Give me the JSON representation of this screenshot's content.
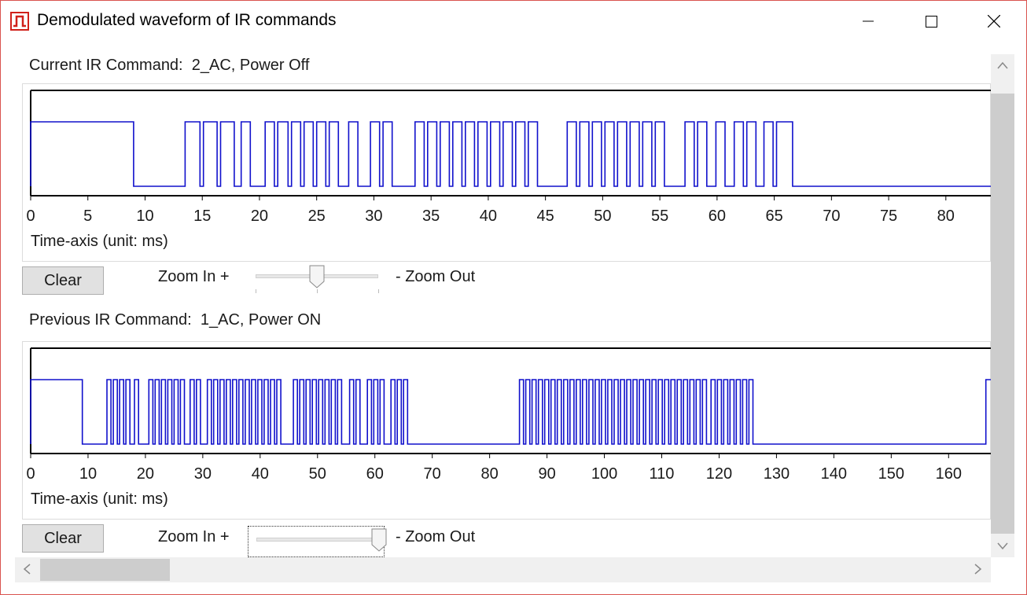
{
  "window": {
    "title": "Demodulated waveform of IR commands"
  },
  "current": {
    "label": "Current IR Command:  2_AC, Power Off",
    "axis_caption": "Time-axis (unit: ms)",
    "clear_label": "Clear",
    "zoom_in_label": "Zoom In +",
    "zoom_out_label": "- Zoom Out",
    "zoom_level": 0.5
  },
  "previous": {
    "label": "Previous IR Command:  1_AC, Power ON",
    "axis_caption": "Time-axis (unit: ms)",
    "clear_label": "Clear",
    "zoom_in_label": "Zoom In +",
    "zoom_out_label": "- Zoom Out",
    "zoom_level": 1.0
  },
  "colors": {
    "waveform": "#1010cc",
    "axis": "#000000",
    "app_icon": "#d0201a"
  },
  "chart_data": [
    {
      "type": "line",
      "step": true,
      "xlabel": "Time-axis (unit: ms)",
      "xlim": [
        0,
        84
      ],
      "x_ticks": [
        0,
        5,
        10,
        15,
        20,
        25,
        30,
        35,
        40,
        45,
        50,
        55,
        60,
        65,
        70,
        75,
        80
      ],
      "grid": false,
      "levels": [
        "low",
        "high"
      ],
      "high_intervals_ms": [
        [
          0,
          9
        ],
        [
          13.5,
          14.8
        ],
        [
          15.1,
          16.3
        ],
        [
          16.6,
          17.8
        ],
        [
          18.4,
          19.2
        ],
        [
          20.5,
          21.3
        ],
        [
          21.6,
          22.5
        ],
        [
          22.8,
          23.6
        ],
        [
          23.9,
          24.7
        ],
        [
          25.0,
          25.8
        ],
        [
          26.1,
          26.9
        ],
        [
          27.8,
          28.6
        ],
        [
          29.7,
          30.5
        ],
        [
          30.8,
          31.6
        ],
        [
          33.6,
          34.4
        ],
        [
          34.7,
          35.5
        ],
        [
          35.8,
          36.6
        ],
        [
          36.9,
          37.7
        ],
        [
          38.0,
          38.8
        ],
        [
          39.1,
          39.9
        ],
        [
          40.2,
          41.0
        ],
        [
          41.3,
          42.1
        ],
        [
          42.4,
          43.2
        ],
        [
          43.5,
          44.3
        ],
        [
          46.9,
          47.7
        ],
        [
          48.0,
          48.8
        ],
        [
          49.1,
          49.9
        ],
        [
          50.2,
          51.0
        ],
        [
          51.3,
          52.1
        ],
        [
          52.4,
          53.2
        ],
        [
          53.5,
          54.3
        ],
        [
          54.6,
          55.4
        ],
        [
          57.2,
          58.0
        ],
        [
          58.3,
          59.1
        ],
        [
          59.9,
          60.7
        ],
        [
          61.5,
          62.3
        ],
        [
          62.6,
          63.4
        ],
        [
          64.1,
          64.9
        ],
        [
          65.2,
          66.6
        ]
      ]
    },
    {
      "type": "line",
      "step": true,
      "xlabel": "Time-axis (unit: ms)",
      "xlim": [
        0,
        167.5
      ],
      "x_ticks": [
        0,
        10,
        20,
        30,
        40,
        50,
        60,
        70,
        80,
        90,
        100,
        110,
        120,
        130,
        140,
        150,
        160
      ],
      "grid": false,
      "levels": [
        "low",
        "high"
      ],
      "high_intervals_ms": [
        [
          0,
          9
        ],
        [
          13.3,
          14.0
        ],
        [
          14.4,
          15.1
        ],
        [
          15.5,
          16.2
        ],
        [
          16.6,
          17.3
        ],
        [
          18.1,
          18.8
        ],
        [
          20.6,
          21.3
        ],
        [
          21.7,
          22.4
        ],
        [
          22.8,
          23.5
        ],
        [
          23.9,
          24.6
        ],
        [
          25.0,
          25.7
        ],
        [
          26.1,
          26.8
        ],
        [
          27.8,
          28.5
        ],
        [
          28.9,
          29.6
        ],
        [
          30.8,
          31.5
        ],
        [
          31.9,
          32.6
        ],
        [
          33.0,
          33.7
        ],
        [
          34.1,
          34.8
        ],
        [
          35.2,
          35.9
        ],
        [
          36.3,
          37.0
        ],
        [
          37.4,
          38.1
        ],
        [
          38.5,
          39.2
        ],
        [
          39.6,
          40.3
        ],
        [
          40.7,
          41.4
        ],
        [
          41.8,
          42.5
        ],
        [
          42.9,
          43.6
        ],
        [
          45.8,
          46.5
        ],
        [
          46.9,
          47.6
        ],
        [
          48.0,
          48.7
        ],
        [
          49.1,
          49.8
        ],
        [
          50.2,
          50.9
        ],
        [
          51.3,
          52.0
        ],
        [
          52.4,
          53.1
        ],
        [
          53.5,
          54.2
        ],
        [
          55.6,
          56.3
        ],
        [
          56.7,
          57.4
        ],
        [
          58.7,
          59.4
        ],
        [
          59.8,
          60.5
        ],
        [
          60.9,
          61.6
        ],
        [
          62.8,
          63.5
        ],
        [
          63.9,
          64.6
        ],
        [
          65.0,
          65.7
        ],
        [
          85.2,
          85.9
        ],
        [
          86.3,
          87.0
        ],
        [
          87.4,
          88.1
        ],
        [
          88.5,
          89.2
        ],
        [
          89.6,
          90.3
        ],
        [
          90.7,
          91.4
        ],
        [
          91.8,
          92.5
        ],
        [
          92.9,
          93.6
        ],
        [
          94.0,
          94.7
        ],
        [
          95.1,
          95.8
        ],
        [
          96.2,
          96.9
        ],
        [
          97.3,
          98.0
        ],
        [
          98.4,
          99.1
        ],
        [
          99.5,
          100.2
        ],
        [
          100.6,
          101.3
        ],
        [
          101.7,
          102.4
        ],
        [
          102.8,
          103.5
        ],
        [
          103.9,
          104.6
        ],
        [
          105.0,
          105.7
        ],
        [
          106.1,
          106.8
        ],
        [
          107.2,
          107.9
        ],
        [
          108.3,
          109.0
        ],
        [
          109.4,
          110.1
        ],
        [
          110.5,
          111.2
        ],
        [
          111.6,
          112.3
        ],
        [
          112.7,
          113.4
        ],
        [
          113.8,
          114.5
        ],
        [
          114.9,
          115.6
        ],
        [
          116.0,
          116.7
        ],
        [
          117.1,
          117.8
        ],
        [
          118.6,
          119.3
        ],
        [
          119.7,
          120.4
        ],
        [
          120.8,
          121.5
        ],
        [
          121.9,
          122.6
        ],
        [
          123.0,
          123.7
        ],
        [
          124.1,
          124.8
        ],
        [
          125.2,
          125.9
        ],
        [
          166.5,
          167.5
        ]
      ]
    }
  ]
}
